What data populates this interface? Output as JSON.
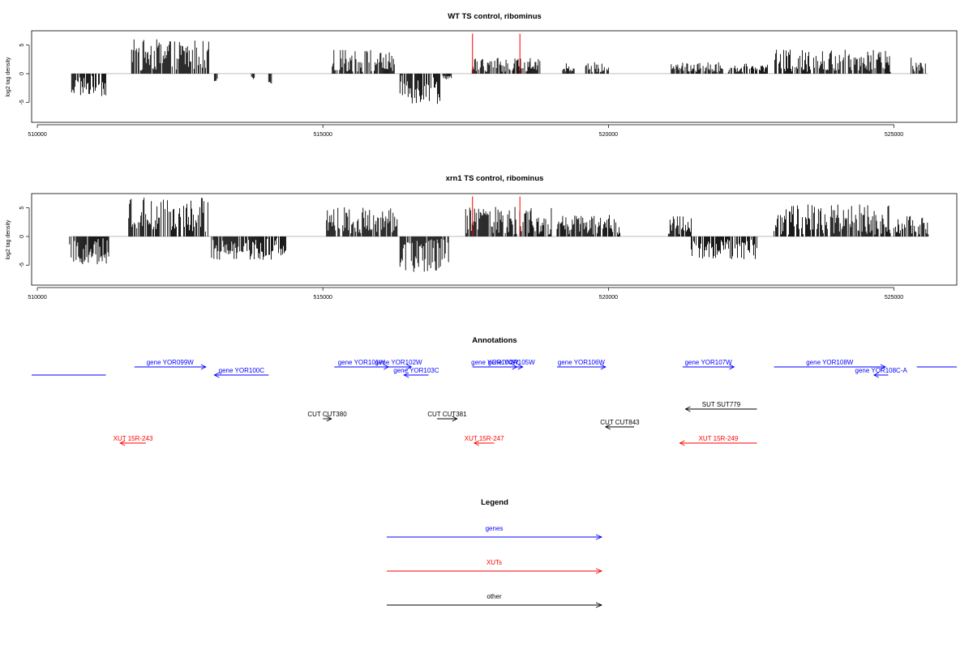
{
  "chart_data": [
    {
      "type": "bar",
      "title": "WT TS control, ribominus",
      "ylabel": "log2 tag density",
      "xlim": [
        509900,
        526100
      ],
      "ylim": [
        -8.5,
        7.5
      ],
      "x_ticks": [
        510000,
        515000,
        520000,
        525000
      ],
      "y_ticks": [
        -5,
        0,
        5
      ],
      "markers": [
        {
          "x": 517620,
          "y_top": 7,
          "color": "#ff0000"
        },
        {
          "x": 518450,
          "y_top": 7,
          "color": "#ff0000"
        }
      ],
      "segments": [
        {
          "x": [
            510600,
            511200
          ],
          "mean": -2.2,
          "amp": 1.8
        },
        {
          "x": [
            511650,
            513000
          ],
          "mean": 3.2,
          "amp": 2.8
        },
        {
          "x": [
            513100,
            513150
          ],
          "mean": -1.2,
          "amp": 0.4
        },
        {
          "x": [
            513750,
            513800
          ],
          "mean": -0.8,
          "amp": 0.3
        },
        {
          "x": [
            514050,
            514100
          ],
          "mean": -1.8,
          "amp": 0.4
        },
        {
          "x": [
            515150,
            515850
          ],
          "mean": 2.2,
          "amp": 2.0
        },
        {
          "x": [
            515900,
            516250
          ],
          "mean": 2.0,
          "amp": 1.8
        },
        {
          "x": [
            516350,
            517050
          ],
          "mean": -2.8,
          "amp": 2.5
        },
        {
          "x": [
            517100,
            517250
          ],
          "mean": -0.6,
          "amp": 0.4
        },
        {
          "x": [
            517600,
            518800
          ],
          "mean": 1.3,
          "amp": 1.6
        },
        {
          "x": [
            519200,
            519400
          ],
          "mean": 1.0,
          "amp": 0.8
        },
        {
          "x": [
            519600,
            520000
          ],
          "mean": 1.0,
          "amp": 1.0
        },
        {
          "x": [
            521100,
            522000
          ],
          "mean": 1.0,
          "amp": 1.0
        },
        {
          "x": [
            522100,
            522800
          ],
          "mean": 1.0,
          "amp": 0.8
        },
        {
          "x": [
            522900,
            524950
          ],
          "mean": 2.0,
          "amp": 2.2
        },
        {
          "x": [
            525300,
            525550
          ],
          "mean": 1.5,
          "amp": 1.5
        }
      ]
    },
    {
      "type": "bar",
      "title": "xrn1 TS control, ribominus",
      "ylabel": "log2 tag density",
      "xlim": [
        509900,
        526100
      ],
      "ylim": [
        -8.5,
        7.5
      ],
      "x_ticks": [
        510000,
        515000,
        520000,
        525000
      ],
      "y_ticks": [
        -5,
        0,
        5
      ],
      "markers": [
        {
          "x": 517620,
          "y_top": 7,
          "color": "#ff0000"
        },
        {
          "x": 518450,
          "y_top": 7,
          "color": "#ff0000"
        }
      ],
      "segments": [
        {
          "x": [
            510550,
            511250
          ],
          "mean": -2.6,
          "amp": 2.3
        },
        {
          "x": [
            511600,
            513000
          ],
          "mean": 3.8,
          "amp": 3.0
        },
        {
          "x": [
            513050,
            514350
          ],
          "mean": -2.2,
          "amp": 2.0
        },
        {
          "x": [
            515050,
            516300
          ],
          "mean": 2.8,
          "amp": 2.3
        },
        {
          "x": [
            516350,
            517200
          ],
          "mean": -3.2,
          "amp": 3.0
        },
        {
          "x": [
            517500,
            519000
          ],
          "mean": 2.6,
          "amp": 2.6
        },
        {
          "x": [
            519100,
            520200
          ],
          "mean": 2.0,
          "amp": 1.8
        },
        {
          "x": [
            521050,
            521450
          ],
          "mean": 2.0,
          "amp": 1.6
        },
        {
          "x": [
            521450,
            522600
          ],
          "mean": -2.2,
          "amp": 1.8
        },
        {
          "x": [
            522900,
            524950
          ],
          "mean": 2.8,
          "amp": 2.8
        },
        {
          "x": [
            525000,
            525600
          ],
          "mean": 1.8,
          "amp": 1.8
        }
      ]
    }
  ],
  "annotations": {
    "title": "Annotations",
    "xlim": [
      509900,
      526100
    ],
    "features": [
      {
        "label": "",
        "kind": "gene",
        "start": 509900,
        "end": 511200,
        "strand": "none",
        "row": 2
      },
      {
        "label": "gene YOR099W",
        "kind": "gene",
        "start": 511700,
        "end": 512950,
        "strand": "+",
        "row": 1
      },
      {
        "label": "gene YOR100C",
        "kind": "gene",
        "start": 513100,
        "end": 514050,
        "strand": "-",
        "row": 2
      },
      {
        "label": "gene YOR101W",
        "kind": "gene",
        "start": 515200,
        "end": 516150,
        "strand": "+",
        "row": 1
      },
      {
        "label": "gene YOR102W",
        "kind": "gene",
        "start": 516100,
        "end": 516550,
        "strand": "+",
        "row": 1
      },
      {
        "label": "gene YOR103C",
        "kind": "gene",
        "start": 516420,
        "end": 516850,
        "strand": "-",
        "row": 2
      },
      {
        "label": "gene YOR104W",
        "kind": "gene",
        "start": 517620,
        "end": 518400,
        "strand": "+",
        "row": 1
      },
      {
        "label": "gene YOR105W",
        "kind": "gene",
        "start": 518100,
        "end": 518500,
        "strand": "+",
        "row": 1
      },
      {
        "label": "gene YOR106W",
        "kind": "gene",
        "start": 519100,
        "end": 519950,
        "strand": "+",
        "row": 1
      },
      {
        "label": "gene YOR107W",
        "kind": "gene",
        "start": 521300,
        "end": 522200,
        "strand": "+",
        "row": 1
      },
      {
        "label": "gene YOR108W",
        "kind": "gene",
        "start": 522900,
        "end": 524850,
        "strand": "+",
        "row": 1
      },
      {
        "label": "gene YOR108C-A",
        "kind": "gene",
        "start": 524650,
        "end": 524900,
        "strand": "-",
        "row": 2
      },
      {
        "label": "",
        "kind": "gene",
        "start": 525400,
        "end": 526100,
        "strand": "none",
        "row": 1
      },
      {
        "label": "SUT SUT779",
        "kind": "other",
        "start": 521350,
        "end": 522600,
        "strand": "-",
        "row": 4
      },
      {
        "label": "CUT CUT380",
        "kind": "other",
        "start": 515000,
        "end": 515150,
        "strand": "+",
        "row": 5
      },
      {
        "label": "CUT CUT381",
        "kind": "other",
        "start": 517000,
        "end": 517350,
        "strand": "+",
        "row": 5
      },
      {
        "label": "CUT CUT843",
        "kind": "other",
        "start": 519950,
        "end": 520450,
        "strand": "-",
        "row": 6
      },
      {
        "label": "XUT 15R-243",
        "kind": "xut",
        "start": 511450,
        "end": 511900,
        "strand": "-",
        "row": 7
      },
      {
        "label": "XUT 15R-247",
        "kind": "xut",
        "start": 517650,
        "end": 518000,
        "strand": "-",
        "row": 7
      },
      {
        "label": "XUT 15R-249",
        "kind": "xut",
        "start": 521250,
        "end": 522600,
        "strand": "-",
        "row": 7
      }
    ]
  },
  "legend": {
    "title": "Legend",
    "items": [
      {
        "label": "genes",
        "color": "#0000ff"
      },
      {
        "label": "XUTs",
        "color": "#ff0000"
      },
      {
        "label": "other",
        "color": "#000000"
      }
    ]
  },
  "colors": {
    "gene": "#0000ff",
    "xut": "#ff0000",
    "other": "#000000",
    "axis": "#000000",
    "zero_line": "#999999"
  }
}
